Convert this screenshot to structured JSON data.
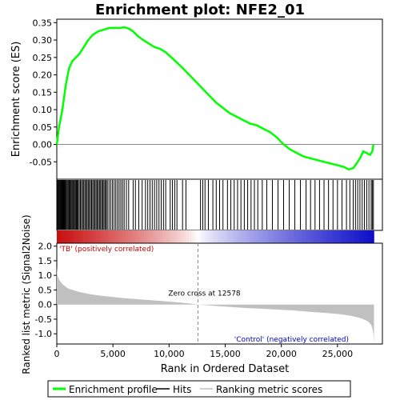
{
  "chart_data": {
    "type": "line",
    "title": "Enrichment plot: NFE2_01",
    "top_panel": {
      "ylabel": "Enrichment score (ES)",
      "ylim": [
        -0.1,
        0.36
      ],
      "yticks": [
        -0.05,
        0.0,
        0.05,
        0.1,
        0.15,
        0.2,
        0.25,
        0.3,
        0.35
      ],
      "ytick_labels": [
        "-0.05",
        "0.00",
        "0.05",
        "0.10",
        "0.15",
        "0.20",
        "0.25",
        "0.30",
        "0.35"
      ],
      "series": [
        {
          "name": "Enrichment profile",
          "color": "#00ff00",
          "x": [
            0,
            200,
            500,
            800,
            1100,
            1400,
            1700,
            2000,
            2400,
            2800,
            3200,
            3700,
            4200,
            4700,
            5200,
            5700,
            6000,
            6400,
            6800,
            7200,
            7700,
            8200,
            8700,
            9200,
            9700,
            10200,
            10700,
            11200,
            11800,
            12400,
            13000,
            13600,
            14200,
            14800,
            15400,
            16000,
            16600,
            17200,
            17800,
            18400,
            19000,
            19600,
            20200,
            20800,
            21400,
            22000,
            22600,
            23200,
            23800,
            24400,
            25000,
            25600,
            26000,
            26400,
            26700,
            27000,
            27300,
            27600,
            27900,
            28100,
            28200
          ],
          "y": [
            0.0,
            0.05,
            0.1,
            0.17,
            0.22,
            0.24,
            0.25,
            0.26,
            0.28,
            0.3,
            0.315,
            0.325,
            0.33,
            0.335,
            0.335,
            0.335,
            0.337,
            0.333,
            0.325,
            0.312,
            0.3,
            0.29,
            0.28,
            0.275,
            0.265,
            0.25,
            0.235,
            0.22,
            0.2,
            0.18,
            0.16,
            0.14,
            0.12,
            0.105,
            0.09,
            0.08,
            0.07,
            0.06,
            0.055,
            0.045,
            0.035,
            0.02,
            0.0,
            -0.015,
            -0.025,
            -0.035,
            -0.04,
            -0.045,
            -0.05,
            -0.055,
            -0.06,
            -0.065,
            -0.072,
            -0.068,
            -0.055,
            -0.04,
            -0.02,
            -0.025,
            -0.03,
            -0.02,
            0.0
          ]
        }
      ]
    },
    "hits_panel": {
      "series_name": "Hits",
      "hit_positions": [
        30,
        90,
        150,
        220,
        290,
        360,
        430,
        500,
        570,
        640,
        710,
        780,
        860,
        940,
        1020,
        1100,
        1180,
        1260,
        1340,
        1420,
        1500,
        1580,
        1660,
        1740,
        1820,
        1900,
        2000,
        2100,
        2200,
        2300,
        2400,
        2500,
        2600,
        2700,
        2800,
        2900,
        3000,
        3100,
        3200,
        3300,
        3400,
        3500,
        3600,
        3700,
        3800,
        3900,
        4000,
        4100,
        4200,
        4300,
        4400,
        4500,
        4650,
        4800,
        4950,
        5100,
        5250,
        5400,
        5550,
        5700,
        5850,
        6000,
        6200,
        6400,
        6800,
        7000,
        7300,
        7600,
        7900,
        8100,
        8300,
        8500,
        8700,
        8900,
        9100,
        9300,
        9500,
        9700,
        10100,
        10300,
        10500,
        10700,
        11200,
        11500,
        12800,
        13000,
        13200,
        13500,
        13900,
        14200,
        14500,
        14800,
        15200,
        15500,
        15800,
        16100,
        16400,
        16700,
        17000,
        17300,
        17600,
        17900,
        18300,
        18700,
        19200,
        19700,
        20200,
        20700,
        21200,
        21700,
        22200,
        22600,
        23000,
        23400,
        23800,
        24200,
        24600,
        25000,
        25400,
        25800,
        26100,
        26400,
        26600,
        26800,
        27000,
        27200,
        27400,
        27600,
        27800,
        28000,
        28100,
        28200
      ]
    },
    "bottom_panel": {
      "xlabel": "Rank in Ordered Dataset",
      "ylabel": "Ranked list metric (Signal2Noise)",
      "series_name": "Ranking metric scores",
      "ylim": [
        -1.35,
        2.1
      ],
      "yticks": [
        -1.0,
        -0.5,
        0.0,
        0.5,
        1.0,
        1.5,
        2.0
      ],
      "ytick_labels": [
        "-1.0",
        "-0.5",
        "0.0",
        "0.5",
        "1.0",
        "1.5",
        "2.0"
      ],
      "x": [
        0,
        50,
        200,
        500,
        1000,
        2000,
        3000,
        4000,
        5000,
        6000,
        7000,
        8000,
        9000,
        10000,
        11000,
        12000,
        12578,
        13000,
        14000,
        15000,
        16000,
        17000,
        18000,
        19000,
        20000,
        21000,
        22000,
        23000,
        24000,
        25000,
        26000,
        26500,
        27000,
        27500,
        27800,
        28000,
        28100,
        28200,
        28250
      ],
      "y": [
        1.3,
        1.0,
        0.85,
        0.7,
        0.55,
        0.43,
        0.35,
        0.3,
        0.26,
        0.22,
        0.19,
        0.16,
        0.13,
        0.1,
        0.07,
        0.03,
        0.0,
        -0.01,
        -0.04,
        -0.07,
        -0.1,
        -0.12,
        -0.14,
        -0.16,
        -0.18,
        -0.2,
        -0.23,
        -0.26,
        -0.29,
        -0.32,
        -0.37,
        -0.41,
        -0.46,
        -0.53,
        -0.6,
        -0.7,
        -0.8,
        -1.0,
        -1.3
      ],
      "annotations": {
        "zero_cross": "Zero cross at 12578",
        "pos_label": "'TB' (positively correlated)",
        "neg_label": "'Control' (negatively correlated)"
      }
    },
    "xlim": [
      0,
      29000
    ],
    "xticks": [
      0,
      5000,
      10000,
      15000,
      20000,
      25000
    ],
    "xtick_labels": [
      "0",
      "5,000",
      "10,000",
      "15,000",
      "20,000",
      "25,000"
    ],
    "zero_cross": 12578,
    "legend": {
      "placement": "bottom",
      "items": [
        "Enrichment profile",
        "Hits",
        "Ranking metric scores"
      ]
    },
    "colors": {
      "profile": "#00ff00",
      "hits": "#000000",
      "metric": "#c0c0c0",
      "pos_text": "#cc0000",
      "neg_text": "#0000cc"
    }
  }
}
